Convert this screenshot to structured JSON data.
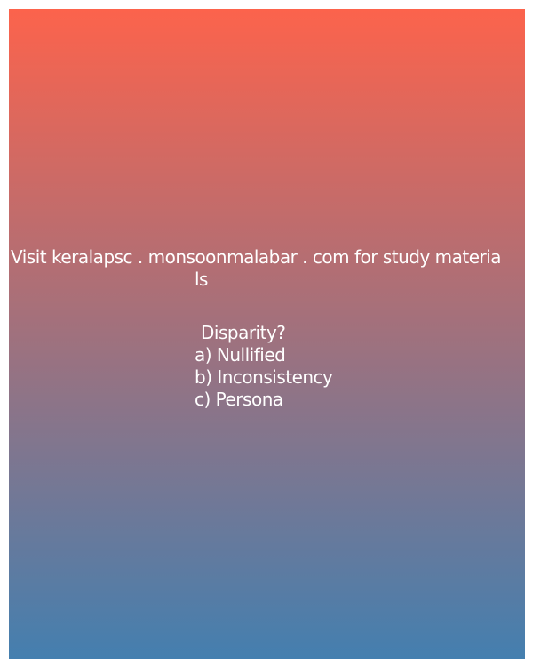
{
  "background": {
    "gradient_top": "#fc634c",
    "gradient_bottom": "#447faf"
  },
  "promo": {
    "line1": "Visit keralapsc . monsoonmalabar . com for study materia",
    "line2": "ls"
  },
  "question": {
    "text": "Disparity?",
    "options": [
      "a) Nullified",
      "b) Inconsistency",
      "c) Persona"
    ]
  }
}
